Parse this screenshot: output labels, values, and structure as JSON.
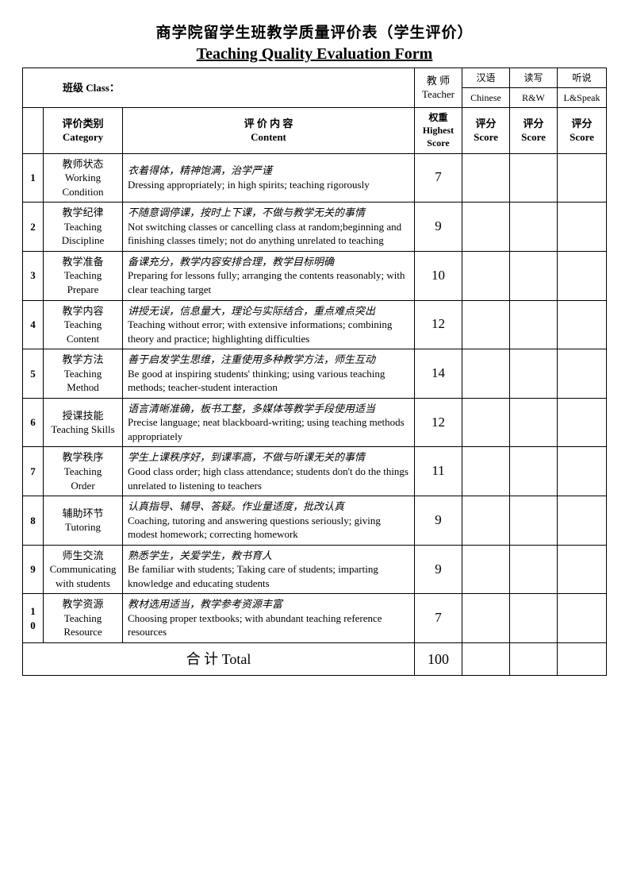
{
  "title_cn": "商学院留学生班教学质量评价表（学生评价）",
  "title_en": "Teaching Quality Evaluation Form",
  "class_label": "班级  Class：",
  "teacher_label_cn": "教 师",
  "teacher_label_en": "Teacher",
  "subjects": [
    {
      "cn": "汉语",
      "en": "Chinese"
    },
    {
      "cn": "读写",
      "en": "R&W"
    },
    {
      "cn": "听说",
      "en": "L&Speak"
    }
  ],
  "headers": {
    "category_cn": "评价类别",
    "category_en": "Category",
    "content_cn": "评 价 内 容",
    "content_en": "Content",
    "highest_cn": "权重",
    "highest_en1": "Highest",
    "highest_en2": "Score",
    "score_cn": "评分",
    "score_en": "Score"
  },
  "rows": [
    {
      "num": "1",
      "cat_cn": "教师状态",
      "cat_en1": "Working",
      "cat_en2": "Condition",
      "content_cn": "衣着得体，精神饱满，治学严谨",
      "content_en": "Dressing appropriately; in high spirits; teaching rigorously",
      "highest": "7"
    },
    {
      "num": "2",
      "cat_cn": "教学纪律",
      "cat_en1": "Teaching",
      "cat_en2": "Discipline",
      "content_cn": "不随意调停课，按时上下课，不做与教学无关的事情",
      "content_en": "Not switching classes or cancelling class at random;beginning and finishing classes timely; not do anything unrelated to teaching",
      "highest": "9"
    },
    {
      "num": "3",
      "cat_cn": "教学准备",
      "cat_en1": "Teaching",
      "cat_en2": "Prepare",
      "content_cn": "备课充分，教学内容安排合理，教学目标明确",
      "content_en": "Preparing for lessons fully; arranging the contents reasonably; with clear teaching target",
      "highest": "10"
    },
    {
      "num": "4",
      "cat_cn": "教学内容",
      "cat_en1": "Teaching",
      "cat_en2": "Content",
      "content_cn": "讲授无误，信息量大，理论与实际结合，重点难点突出",
      "content_en": "Teaching without error; with extensive informations; combining theory and practice; highlighting difficulties",
      "highest": "12"
    },
    {
      "num": "5",
      "cat_cn": "教学方法",
      "cat_en1": "Teaching",
      "cat_en2": "Method",
      "content_cn": "善于启发学生思维，注重使用多种教学方法，师生互动",
      "content_en": "Be good at inspiring students' thinking; using various teaching methods; teacher-student interaction",
      "highest": "14"
    },
    {
      "num": "6",
      "cat_cn": "授课技能",
      "cat_en1": "Teaching Skills",
      "cat_en2": "",
      "content_cn": "语言清晰准确，板书工整，多媒体等教学手段使用适当",
      "content_en": "Precise language; neat blackboard-writing; using teaching methods appropriately",
      "highest": "12"
    },
    {
      "num": "7",
      "cat_cn": "教学秩序",
      "cat_en1": "Teaching",
      "cat_en2": "Order",
      "content_cn": "学生上课秩序好，到课率高，不做与听课无关的事情",
      "content_en": "Good class order; high class attendance; students don't do the things unrelated to listening to teachers",
      "highest": "11"
    },
    {
      "num": "8",
      "cat_cn": "辅助环节",
      "cat_en1": "Tutoring",
      "cat_en2": "",
      "content_cn": "认真指导、辅导、答疑。作业量适度，批改认真",
      "content_en": "Coaching, tutoring and answering questions seriously; giving modest homework; correcting homework",
      "highest": "9"
    },
    {
      "num": "9",
      "cat_cn": "师生交流",
      "cat_en1": "Communicating",
      "cat_en2": "with students",
      "content_cn": "熟悉学生，关爱学生，教书育人",
      "content_en": "Be familiar with students; Taking care of students; imparting knowledge and educating students",
      "highest": "9"
    },
    {
      "num": "10",
      "cat_cn": "教学资源",
      "cat_en1": "Teaching",
      "cat_en2": "Resource",
      "content_cn": "教材选用适当，教学参考资源丰富",
      "content_en": "Choosing proper textbooks; with abundant teaching reference resources",
      "highest": "7"
    }
  ],
  "total_label": "合 计 Total",
  "total_value": "100"
}
